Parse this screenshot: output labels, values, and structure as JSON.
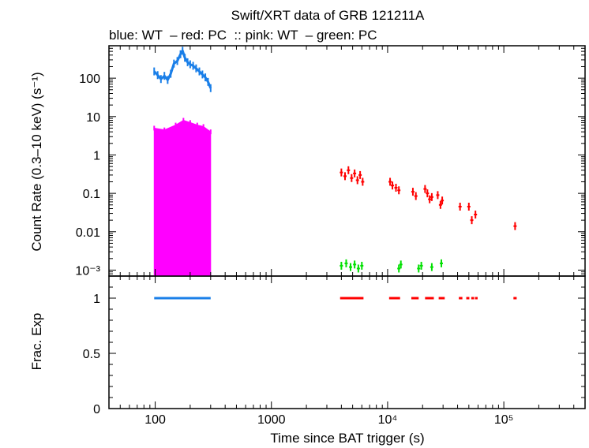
{
  "chart_data": {
    "type": "scatter",
    "title": "Swift/XRT data of GRB 121211A",
    "subtitle": "blue: WT  – red: PC  :: pink: WT  – green: PC",
    "xlabel": "Time since BAT trigger (s)",
    "x_scale": "log",
    "xlim": [
      40,
      500000
    ],
    "x_ticks": [
      {
        "value": 100,
        "label": "100"
      },
      {
        "value": 1000,
        "label": "1000"
      },
      {
        "value": 10000,
        "label": "10⁴"
      },
      {
        "value": 100000,
        "label": "10⁵"
      }
    ],
    "panels": [
      {
        "name": "rate",
        "ylabel": "Count Rate (0.3–10 keV) (s⁻¹)",
        "y_scale": "log",
        "ylim": [
          0.0007,
          700
        ],
        "y_ticks": [
          {
            "value": 100,
            "label": "100"
          },
          {
            "value": 10,
            "label": "10"
          },
          {
            "value": 1,
            "label": "1"
          },
          {
            "value": 0.1,
            "label": "0.1"
          },
          {
            "value": 0.01,
            "label": "0.01"
          },
          {
            "value": 0.001,
            "label": "10⁻³"
          }
        ],
        "series": [
          {
            "color": "#1a7fe8",
            "style": "line",
            "mode": "WT",
            "points": [
              [
                98,
                150
              ],
              [
                105,
                120
              ],
              [
                112,
                95
              ],
              [
                120,
                115
              ],
              [
                128,
                90
              ],
              [
                136,
                130
              ],
              [
                145,
                240
              ],
              [
                155,
                280
              ],
              [
                165,
                420
              ],
              [
                172,
                520
              ],
              [
                180,
                340
              ],
              [
                190,
                260
              ],
              [
                200,
                230
              ],
              [
                212,
                210
              ],
              [
                225,
                180
              ],
              [
                240,
                150
              ],
              [
                255,
                125
              ],
              [
                270,
                105
              ],
              [
                285,
                80
              ],
              [
                300,
                55
              ]
            ]
          },
          {
            "color": "#ff00ff",
            "style": "band",
            "mode": "WT",
            "x_range": [
              98,
              300
            ],
            "upper": [
              [
                98,
                5
              ],
              [
                120,
                4.5
              ],
              [
                150,
                6
              ],
              [
                175,
                8
              ],
              [
                200,
                7
              ],
              [
                230,
                6
              ],
              [
                260,
                5.5
              ],
              [
                300,
                4
              ]
            ],
            "lower": 0.0007
          },
          {
            "color": "#ff0000",
            "style": "points",
            "mode": "PC",
            "points": [
              [
                4000,
                0.35
              ],
              [
                4300,
                0.28
              ],
              [
                4600,
                0.4
              ],
              [
                4900,
                0.25
              ],
              [
                5200,
                0.33
              ],
              [
                5500,
                0.22
              ],
              [
                5800,
                0.3
              ],
              [
                6100,
                0.2
              ],
              [
                10500,
                0.2
              ],
              [
                11000,
                0.16
              ],
              [
                11800,
                0.14
              ],
              [
                12500,
                0.12
              ],
              [
                16500,
                0.11
              ],
              [
                17500,
                0.085
              ],
              [
                21000,
                0.13
              ],
              [
                22000,
                0.1
              ],
              [
                23000,
                0.07
              ],
              [
                24000,
                0.08
              ],
              [
                27000,
                0.09
              ],
              [
                28500,
                0.05
              ],
              [
                29500,
                0.065
              ],
              [
                42000,
                0.045
              ],
              [
                50000,
                0.045
              ],
              [
                53000,
                0.02
              ],
              [
                57000,
                0.028
              ],
              [
                125000,
                0.014
              ]
            ]
          },
          {
            "color": "#00e000",
            "style": "points",
            "mode": "PC",
            "points": [
              [
                4000,
                0.0013
              ],
              [
                4400,
                0.0015
              ],
              [
                4800,
                0.0012
              ],
              [
                5200,
                0.0014
              ],
              [
                5600,
                0.0011
              ],
              [
                6000,
                0.0013
              ],
              [
                12500,
                0.0011
              ],
              [
                13000,
                0.0014
              ],
              [
                18500,
                0.0011
              ],
              [
                19500,
                0.0013
              ],
              [
                24000,
                0.0012
              ],
              [
                29000,
                0.0015
              ]
            ]
          }
        ]
      },
      {
        "name": "fracexp",
        "ylabel": "Frac. Exp",
        "y_scale": "linear",
        "ylim": [
          0,
          1.2
        ],
        "y_ticks": [
          {
            "value": 1,
            "label": "1"
          },
          {
            "value": 0.5,
            "label": "0.5"
          },
          {
            "value": 0,
            "label": "0"
          }
        ],
        "segments": [
          {
            "color": "#1a7fe8",
            "x0": 98,
            "x1": 300,
            "y": 1
          },
          {
            "color": "#ff0000",
            "x0": 3900,
            "x1": 6200,
            "y": 1
          },
          {
            "color": "#ff0000",
            "x0": 10300,
            "x1": 12800,
            "y": 1
          },
          {
            "color": "#ff0000",
            "x0": 16000,
            "x1": 18500,
            "y": 1
          },
          {
            "color": "#ff0000",
            "x0": 21000,
            "x1": 25000,
            "y": 1
          },
          {
            "color": "#ff0000",
            "x0": 27500,
            "x1": 31000,
            "y": 1
          },
          {
            "color": "#ff0000",
            "x0": 41000,
            "x1": 44000,
            "y": 1
          },
          {
            "color": "#ff0000",
            "x0": 47500,
            "x1": 50500,
            "y": 1
          },
          {
            "color": "#ff0000",
            "x0": 52500,
            "x1": 55500,
            "y": 1
          },
          {
            "color": "#ff0000",
            "x0": 56500,
            "x1": 59500,
            "y": 1
          },
          {
            "color": "#ff0000",
            "x0": 121000,
            "x1": 129000,
            "y": 1
          }
        ]
      }
    ]
  }
}
